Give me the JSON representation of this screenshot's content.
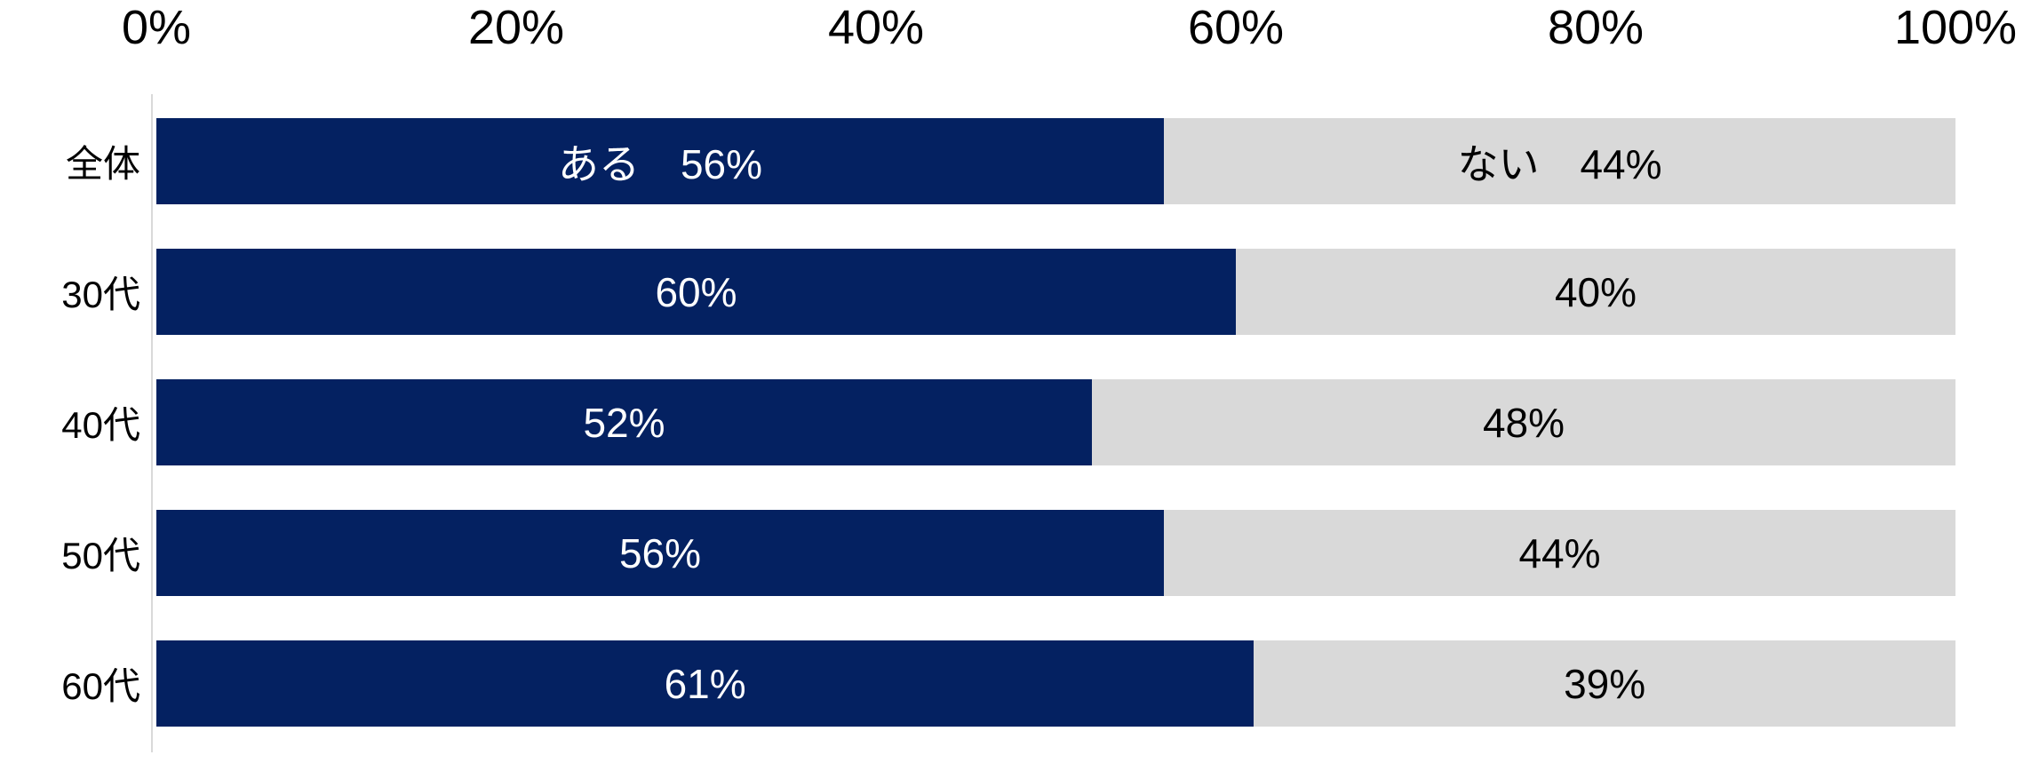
{
  "chart_data": {
    "type": "bar",
    "variant": "horizontal_stacked_100pct",
    "title": "",
    "categories": [
      "全体",
      "30代",
      "40代",
      "50代",
      "60代"
    ],
    "series": [
      {
        "name": "ある",
        "color": "#042161",
        "label_color": "#ffffff",
        "values": [
          56,
          60,
          52,
          56,
          61
        ]
      },
      {
        "name": "ない",
        "color": "#d9d9d9",
        "label_color": "#000000",
        "values": [
          44,
          40,
          48,
          44,
          39
        ]
      }
    ],
    "segment_labels": [
      [
        "ある　56%",
        "ない　44%"
      ],
      [
        "60%",
        "40%"
      ],
      [
        "52%",
        "48%"
      ],
      [
        "56%",
        "44%"
      ],
      [
        "61%",
        "39%"
      ]
    ],
    "x_axis": {
      "position": "top",
      "min": 0,
      "max": 100,
      "tick_values": [
        0,
        20,
        40,
        60,
        80,
        100
      ],
      "ticks": [
        "0%",
        "20%",
        "40%",
        "60%",
        "80%",
        "100%"
      ]
    },
    "grid": false,
    "legend": "none",
    "colors": {
      "background": "#ffffff",
      "axis_line": "#d9d9d9",
      "tick_text": "#000000",
      "category_text": "#000000"
    }
  }
}
